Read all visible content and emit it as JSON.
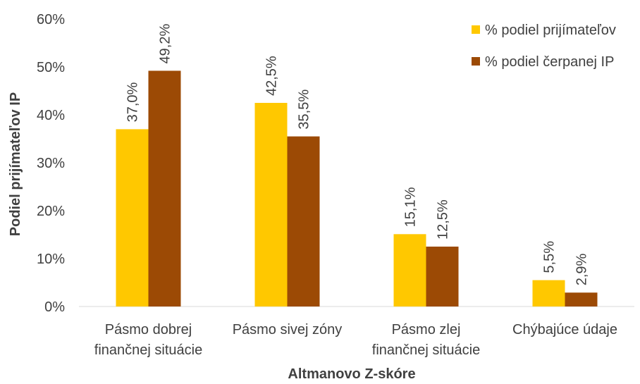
{
  "chart_data": {
    "type": "bar",
    "categories": [
      [
        "Pásmo dobrej",
        "finančnej situácie"
      ],
      [
        "Pásmo sivej zóny"
      ],
      [
        "Pásmo zlej",
        "finančnej situácie"
      ],
      [
        "Chýbajúce údaje"
      ]
    ],
    "series": [
      {
        "name": "% podiel prijímateľov",
        "values": [
          37.0,
          42.5,
          15.1,
          5.5
        ],
        "labels": [
          "37,0%",
          "42,5%",
          "15,1%",
          "5,5%"
        ]
      },
      {
        "name": "% podiel čerpanej IP",
        "values": [
          49.2,
          35.5,
          12.5,
          2.9
        ],
        "labels": [
          "49,2%",
          "35,5%",
          "12,5%",
          "2,9%"
        ]
      }
    ],
    "colors": [
      "#FFC800",
      "#9C4A05"
    ],
    "ylim": [
      0,
      60
    ],
    "yticks": [
      "0%",
      "10%",
      "20%",
      "30%",
      "40%",
      "50%",
      "60%"
    ],
    "xlabel": "Altmanovo Z-skóre",
    "ylabel": "Podiel prijímateľov IP",
    "legend_position": "top-right",
    "grid": false
  }
}
